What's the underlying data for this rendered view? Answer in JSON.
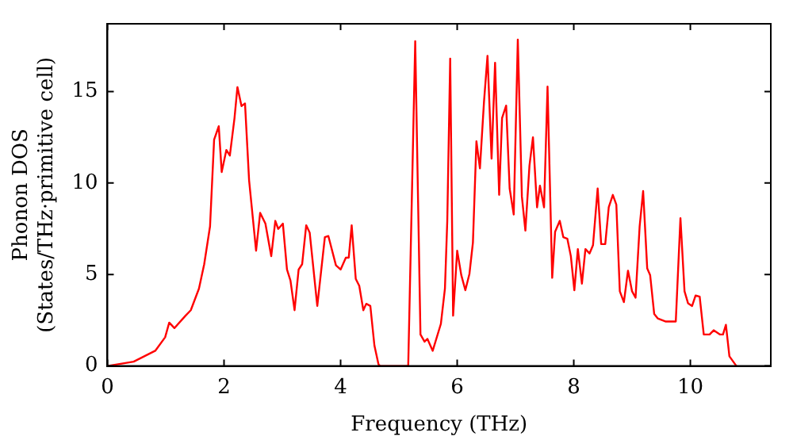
{
  "chart_data": {
    "type": "line",
    "xlabel": "Frequency (THz)",
    "ylabel": "Phonon DOS\n(States/THz·primitive cell)",
    "xlim": [
      0,
      11.38
    ],
    "ylim": [
      0,
      18.7
    ],
    "xticks": [
      0,
      2,
      4,
      6,
      8,
      10
    ],
    "yticks": [
      0,
      5,
      10,
      15
    ],
    "grid": false,
    "legend": false,
    "marker": "none",
    "line_style": "solid",
    "x": [
      0,
      0.45,
      0.82,
      0.99,
      1.06,
      1.15,
      1.34,
      1.43,
      1.57,
      1.66,
      1.76,
      1.83,
      1.91,
      1.96,
      2.04,
      2.1,
      2.18,
      2.23,
      2.3,
      2.36,
      2.43,
      2.55,
      2.62,
      2.71,
      2.81,
      2.88,
      2.93,
      3.01,
      3.08,
      3.14,
      3.21,
      3.28,
      3.34,
      3.41,
      3.47,
      3.6,
      3.73,
      3.79,
      3.92,
      4.0,
      4.09,
      4.14,
      4.19,
      4.26,
      4.32,
      4.39,
      4.44,
      4.51,
      4.58,
      4.65,
      4.68,
      5.16,
      5.28,
      5.37,
      5.44,
      5.49,
      5.58,
      5.72,
      5.79,
      5.83,
      5.88,
      5.93,
      6.0,
      6.07,
      6.14,
      6.21,
      6.27,
      6.33,
      6.39,
      6.46,
      6.52,
      6.59,
      6.65,
      6.72,
      6.77,
      6.84,
      6.9,
      6.97,
      7.04,
      7.11,
      7.17,
      7.24,
      7.3,
      7.37,
      7.42,
      7.49,
      7.55,
      7.63,
      7.68,
      7.76,
      7.82,
      7.89,
      7.95,
      8.01,
      8.07,
      8.14,
      8.2,
      8.27,
      8.33,
      8.41,
      8.47,
      8.54,
      8.6,
      8.67,
      8.73,
      8.79,
      8.86,
      8.93,
      9.0,
      9.06,
      9.13,
      9.19,
      9.26,
      9.31,
      9.38,
      9.44,
      9.58,
      9.75,
      9.83,
      9.9,
      9.96,
      10.03,
      10.09,
      10.16,
      10.23,
      10.33,
      10.4,
      10.51,
      10.56,
      10.61,
      10.67,
      10.79
    ],
    "series": [
      {
        "color": "#ff0000",
        "values": [
          0,
          0.24,
          0.83,
          1.57,
          2.37,
          2.07,
          2.75,
          3.05,
          4.23,
          5.56,
          7.63,
          12.37,
          13.1,
          10.6,
          11.8,
          11.5,
          13.55,
          15.24,
          14.2,
          14.35,
          10.15,
          6.3,
          8.37,
          7.78,
          6.0,
          7.93,
          7.49,
          7.78,
          5.27,
          4.67,
          3.05,
          5.27,
          5.56,
          7.69,
          7.28,
          3.28,
          7.04,
          7.1,
          5.5,
          5.27,
          5.92,
          5.92,
          7.69,
          4.76,
          4.38,
          3.05,
          3.4,
          3.28,
          1.12,
          0.09,
          0,
          0,
          17.75,
          1.72,
          1.33,
          1.48,
          0.83,
          2.3,
          4.23,
          7.93,
          16.8,
          2.75,
          6.3,
          4.97,
          4.14,
          5.03,
          6.75,
          12.28,
          10.8,
          14.44,
          16.95,
          11.33,
          16.57,
          9.35,
          13.55,
          14.23,
          9.7,
          8.28,
          17.84,
          9.26,
          7.4,
          10.95,
          12.5,
          8.67,
          9.85,
          8.67,
          15.27,
          4.82,
          7.34,
          7.93,
          7.04,
          6.95,
          6.0,
          4.14,
          6.39,
          4.5,
          6.39,
          6.15,
          6.6,
          9.7,
          6.66,
          6.66,
          8.67,
          9.35,
          8.82,
          4.08,
          3.49,
          5.21,
          4.08,
          3.73,
          7.63,
          9.56,
          5.33,
          4.97,
          2.84,
          2.6,
          2.43,
          2.43,
          8.08,
          4.08,
          3.43,
          3.28,
          3.85,
          3.79,
          1.72,
          1.72,
          1.95,
          1.72,
          1.72,
          2.25,
          0.53,
          0
        ]
      }
    ]
  }
}
